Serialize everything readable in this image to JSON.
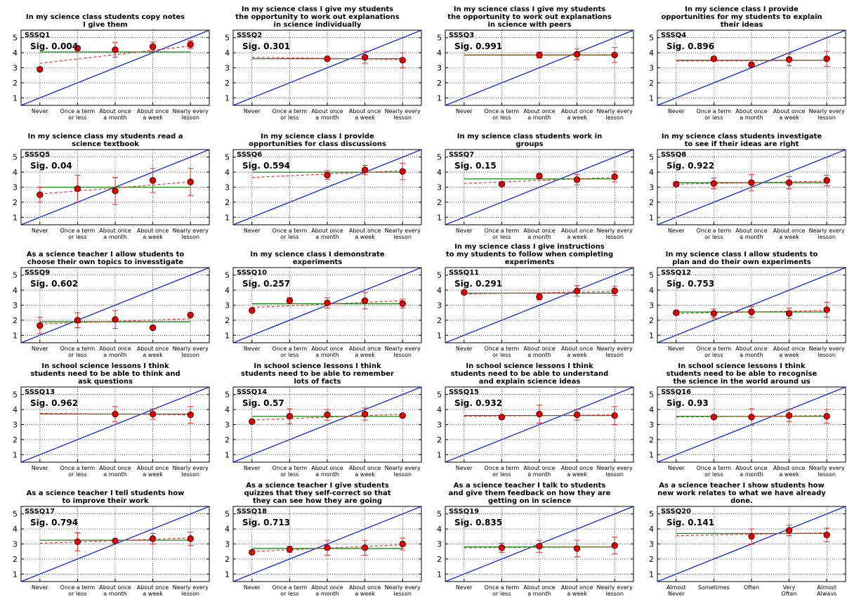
{
  "figure": {
    "colors": {
      "identity_line": "#1f2ff0",
      "mean_line": "#118811",
      "trend_line": "#ff2020",
      "point_fill": "#dd0000",
      "error_bar": "#ff2020"
    }
  },
  "chart_data": [
    {
      "type": "scatter",
      "id": "SSSQ1",
      "title": "In my science class students copy notes\nI give them",
      "sig_label": "Sig. 0.004",
      "x_tick_labels": [
        "Never",
        "Once a term\nor less",
        "About once\na month",
        "About once\na week",
        "Nearly every\nlesson"
      ],
      "ylim": [
        0.5,
        5.5
      ],
      "y_ticks": [
        1,
        2,
        3,
        4,
        5
      ],
      "grid": true,
      "means": [
        2.9,
        4.3,
        4.2,
        4.4,
        4.55
      ],
      "errors": [
        0,
        0.15,
        0.5,
        0.3,
        0.25
      ],
      "mean_line": 4.05,
      "trend": [
        3.3,
        4.45
      ]
    },
    {
      "type": "scatter",
      "id": "SSSQ2",
      "title": "In my science class I give my students\nthe opportunity to work out explanations\nin science individually",
      "sig_label": "Sig. 0.301",
      "x_tick_labels": [
        "Never",
        "Once a term\nor less",
        "About once\na month",
        "About once\na week",
        "Nearly every\nlesson"
      ],
      "ylim": [
        0.5,
        5.5
      ],
      "y_ticks": [
        1,
        2,
        3,
        4,
        5
      ],
      "grid": true,
      "means": [
        null,
        null,
        3.6,
        3.7,
        3.5
      ],
      "errors": [
        0,
        0,
        0.1,
        0.4,
        0.5
      ],
      "mean_line": 3.6,
      "trend": [
        3.7,
        3.55
      ]
    },
    {
      "type": "scatter",
      "id": "SSSQ3",
      "title": "In my science class I give my students\nthe opportunity to work out explanations\nin science with peers",
      "sig_label": "Sig. 0.991",
      "x_tick_labels": [
        "Never",
        "Once a term\nor less",
        "About once\na month",
        "About once\na week",
        "Nearly every\nlesson"
      ],
      "ylim": [
        0.5,
        5.5
      ],
      "y_ticks": [
        1,
        2,
        3,
        4,
        5
      ],
      "grid": true,
      "means": [
        null,
        null,
        3.85,
        3.9,
        3.85
      ],
      "errors": [
        0,
        0,
        0.2,
        0.35,
        0.5
      ],
      "mean_line": 3.85,
      "trend": [
        3.85,
        3.85
      ]
    },
    {
      "type": "scatter",
      "id": "SSSQ4",
      "title": "In my science class I provide\nopportunities for my students to explain\ntheir ideas",
      "sig_label": "Sig. 0.896",
      "x_tick_labels": [
        "Never",
        "Once a term\nor less",
        "About once\na month",
        "About once\na week",
        "Nearly every\nlesson"
      ],
      "ylim": [
        0.5,
        5.5
      ],
      "y_ticks": [
        1,
        2,
        3,
        4,
        5
      ],
      "grid": true,
      "means": [
        null,
        3.6,
        3.2,
        3.55,
        3.6
      ],
      "errors": [
        0,
        0.1,
        0.15,
        0.4,
        0.5
      ],
      "mean_line": 3.5,
      "trend": [
        3.45,
        3.5
      ]
    },
    {
      "type": "scatter",
      "id": "SSSQ5",
      "title": "In my science class my students read a\nscience textbook",
      "sig_label": "Sig. 0.04",
      "x_tick_labels": [
        "Never",
        "Once a term\nor less",
        "About once\na month",
        "About once\na week",
        "Nearly every\nlesson"
      ],
      "ylim": [
        0.5,
        5.5
      ],
      "y_ticks": [
        1,
        2,
        3,
        4,
        5
      ],
      "grid": true,
      "means": [
        2.5,
        2.9,
        2.75,
        3.45,
        3.35
      ],
      "errors": [
        0.5,
        0.9,
        0.9,
        0.8,
        0.9
      ],
      "mean_line": 3.0,
      "trend": [
        2.55,
        3.35
      ]
    },
    {
      "type": "scatter",
      "id": "SSSQ6",
      "title": "In my science class I provide\nopportunities for class discussions",
      "sig_label": "Sig. 0.594",
      "x_tick_labels": [
        "Never",
        "Once a term\nor less",
        "About once\na month",
        "About once\na week",
        "Nearly every\nlesson"
      ],
      "ylim": [
        0.5,
        5.5
      ],
      "y_ticks": [
        1,
        2,
        3,
        4,
        5
      ],
      "grid": true,
      "means": [
        null,
        null,
        3.8,
        4.15,
        4.05
      ],
      "errors": [
        0,
        0,
        0.3,
        0.3,
        0.55
      ],
      "mean_line": 4.0,
      "trend": [
        3.65,
        4.1
      ]
    },
    {
      "type": "scatter",
      "id": "SSSQ7",
      "title": "In my science class students work in\ngroups",
      "sig_label": "Sig. 0.15",
      "x_tick_labels": [
        "Never",
        "Once a term\nor less",
        "About once\na month",
        "About once\na week",
        "Nearly every\nlesson"
      ],
      "ylim": [
        0.5,
        5.5
      ],
      "y_ticks": [
        1,
        2,
        3,
        4,
        5
      ],
      "grid": true,
      "means": [
        null,
        3.2,
        3.75,
        3.5,
        3.7
      ],
      "errors": [
        0,
        0.1,
        0.15,
        0.35,
        0.35
      ],
      "mean_line": 3.55,
      "trend": [
        3.25,
        3.65
      ]
    },
    {
      "type": "scatter",
      "id": "SSSQ8",
      "title": "In my science class students investigate\nto see if their ideas are right",
      "sig_label": "Sig. 0.922",
      "x_tick_labels": [
        "Never",
        "Once a term\nor less",
        "About once\na month",
        "About once\na week",
        "Nearly every\nlesson"
      ],
      "ylim": [
        0.5,
        5.5
      ],
      "y_ticks": [
        1,
        2,
        3,
        4,
        5
      ],
      "grid": true,
      "means": [
        3.2,
        3.25,
        3.3,
        3.3,
        3.45
      ],
      "errors": [
        0.15,
        0.35,
        0.55,
        0.4,
        0.35
      ],
      "mean_line": 3.3,
      "trend": [
        3.2,
        3.4
      ]
    },
    {
      "type": "scatter",
      "id": "SSSQ9",
      "title": "As a science teacher I allow students to\nchoose their own topics to invesstigate",
      "sig_label": "Sig. 0.602",
      "x_tick_labels": [
        "Never",
        "Once a term\nor less",
        "About once\na month",
        "About once\na week",
        "Nearly every\nlesson"
      ],
      "ylim": [
        0.5,
        5.5
      ],
      "y_ticks": [
        1,
        2,
        3,
        4,
        5
      ],
      "grid": true,
      "means": [
        1.65,
        2.0,
        2.05,
        1.5,
        2.35
      ],
      "errors": [
        0.55,
        0.5,
        0.6,
        0,
        0.1
      ],
      "mean_line": 1.9,
      "trend": [
        1.75,
        2.1
      ]
    },
    {
      "type": "scatter",
      "id": "SSSQ10",
      "title": "In my science class I demonstrate\nexperiments",
      "sig_label": "Sig. 0.257",
      "x_tick_labels": [
        "Never",
        "Once a term\nor less",
        "About once\na month",
        "About once\na week",
        "Nearly every\nlesson"
      ],
      "ylim": [
        0.5,
        5.5
      ],
      "y_ticks": [
        1,
        2,
        3,
        4,
        5
      ],
      "grid": true,
      "means": [
        2.65,
        3.3,
        3.15,
        3.3,
        3.1
      ],
      "errors": [
        0.1,
        0.2,
        0.35,
        0.55,
        0.3
      ],
      "mean_line": 3.1,
      "trend": [
        2.85,
        3.3
      ]
    },
    {
      "type": "scatter",
      "id": "SSSQ11",
      "title": "In my science class I give instructions\nto my students to follow when completing\nexperiments",
      "sig_label": "Sig. 0.291",
      "x_tick_labels": [
        "Never",
        "Once a term\nor less",
        "About once\na month",
        "About once\na week",
        "Nearly every\nlesson"
      ],
      "ylim": [
        0.5,
        5.5
      ],
      "y_ticks": [
        1,
        2,
        3,
        4,
        5
      ],
      "grid": true,
      "means": [
        3.85,
        null,
        3.55,
        3.95,
        3.95
      ],
      "errors": [
        0.1,
        0,
        0.2,
        0.35,
        0.3
      ],
      "mean_line": 3.8,
      "trend": [
        3.75,
        3.9
      ]
    },
    {
      "type": "scatter",
      "id": "SSSQ12",
      "title": "In my science class I allow students to\nplan and do their own experiments",
      "sig_label": "Sig. 0.753",
      "x_tick_labels": [
        "Never",
        "Once a term\nor less",
        "About once\na month",
        "About once\na week",
        "Nearly every\nlesson"
      ],
      "ylim": [
        0.5,
        5.5
      ],
      "y_ticks": [
        1,
        2,
        3,
        4,
        5
      ],
      "grid": true,
      "means": [
        2.5,
        2.45,
        2.55,
        2.45,
        2.7
      ],
      "errors": [
        0.15,
        0.3,
        0.35,
        0.35,
        0.5
      ],
      "mean_line": 2.55,
      "trend": [
        2.45,
        2.65
      ]
    },
    {
      "type": "scatter",
      "id": "SSSQ13",
      "title": "In school science lessons I think\nstudents need to be able to think and\nask questions",
      "sig_label": "Sig. 0.962",
      "x_tick_labels": [
        "Never",
        "Once a term\nor less",
        "About once\na month",
        "About once\na week",
        "Nearly every\nlesson"
      ],
      "ylim": [
        0.5,
        5.5
      ],
      "y_ticks": [
        1,
        2,
        3,
        4,
        5
      ],
      "grid": true,
      "means": [
        null,
        null,
        3.7,
        3.7,
        3.65
      ],
      "errors": [
        0,
        0,
        0.5,
        0.35,
        0.55
      ],
      "mean_line": 3.7,
      "trend": [
        3.75,
        3.65
      ]
    },
    {
      "type": "scatter",
      "id": "SSSQ14",
      "title": "In school science lessons I think\nstudents need to be able to remember\nlots of facts",
      "sig_label": "Sig. 0.57",
      "x_tick_labels": [
        "Never",
        "Once a term\nor less",
        "About once\na month",
        "About once\na week",
        "Nearly every\nlesson"
      ],
      "ylim": [
        0.5,
        5.5
      ],
      "y_ticks": [
        1,
        2,
        3,
        4,
        5
      ],
      "grid": true,
      "means": [
        3.2,
        3.55,
        3.65,
        3.7,
        3.6
      ],
      "errors": [
        0.1,
        0.5,
        0.35,
        0.4,
        0.1
      ],
      "mean_line": 3.55,
      "trend": [
        3.3,
        3.7
      ]
    },
    {
      "type": "scatter",
      "id": "SSSQ15",
      "title": "In school science lessons I think\nstudents need to be able to understand\nand explain science ideas",
      "sig_label": "Sig. 0.932",
      "x_tick_labels": [
        "Never",
        "Once a term\nor less",
        "About once\na month",
        "About once\na week",
        "Nearly every\nlesson"
      ],
      "ylim": [
        0.5,
        5.5
      ],
      "y_ticks": [
        1,
        2,
        3,
        4,
        5
      ],
      "grid": true,
      "means": [
        null,
        3.5,
        3.7,
        3.65,
        3.6
      ],
      "errors": [
        0,
        0.1,
        0.6,
        0.35,
        0.6
      ],
      "mean_line": 3.6,
      "trend": [
        3.55,
        3.65
      ]
    },
    {
      "type": "scatter",
      "id": "SSSQ16",
      "title": "In school science lessons I think\nstudents need to be able to recognise\nthe science in the world around us",
      "sig_label": "Sig. 0.93",
      "x_tick_labels": [
        "Never",
        "Once a term\nor less",
        "About once\na month",
        "About once\na week",
        "Nearly every\nlesson"
      ],
      "ylim": [
        0.5,
        5.5
      ],
      "y_ticks": [
        1,
        2,
        3,
        4,
        5
      ],
      "grid": true,
      "means": [
        null,
        3.5,
        3.5,
        3.6,
        3.55
      ],
      "errors": [
        0,
        0.1,
        0.55,
        0.4,
        0.45
      ],
      "mean_line": 3.55,
      "trend": [
        3.5,
        3.6
      ]
    },
    {
      "type": "scatter",
      "id": "SSSQ17",
      "title": "As a science teacher I tell students how\nto improve their work",
      "sig_label": "Sig. 0.794",
      "x_tick_labels": [
        "Never",
        "Once a term\nor less",
        "About once\na month",
        "About once\na week",
        "Nearly every\nlesson"
      ],
      "ylim": [
        0.5,
        5.5
      ],
      "y_ticks": [
        1,
        2,
        3,
        4,
        5
      ],
      "grid": true,
      "means": [
        null,
        3.15,
        3.2,
        3.35,
        3.35
      ],
      "errors": [
        0,
        0.6,
        0.1,
        0.35,
        0.45
      ],
      "mean_line": 3.25,
      "trend": [
        3.05,
        3.4
      ]
    },
    {
      "type": "scatter",
      "id": "SSSQ18",
      "title": "As a science teacher I give students\nquizzes that they self-correct so that\nthey can see how they are going",
      "sig_label": "Sig. 0.713",
      "x_tick_labels": [
        "Never",
        "Once a term\nor less",
        "About once\na month",
        "About once\na week",
        "Nearly every\nlesson"
      ],
      "ylim": [
        0.5,
        5.5
      ],
      "y_ticks": [
        1,
        2,
        3,
        4,
        5
      ],
      "grid": true,
      "means": [
        2.45,
        2.65,
        2.75,
        2.75,
        3.0
      ],
      "errors": [
        0.1,
        0.2,
        0.5,
        0.5,
        0.4
      ],
      "mean_line": 2.7,
      "trend": [
        2.5,
        2.95
      ]
    },
    {
      "type": "scatter",
      "id": "SSSQ19",
      "title": "As a science teacher I talk to students\nand give them feedback on how they are\ngetting on in science",
      "sig_label": "Sig. 0.835",
      "x_tick_labels": [
        "Never",
        "Once a term\nor less",
        "About once\na month",
        "About once\na week",
        "Nearly every\nlesson"
      ],
      "ylim": [
        0.5,
        5.5
      ],
      "y_ticks": [
        1,
        2,
        3,
        4,
        5
      ],
      "grid": true,
      "means": [
        null,
        2.75,
        2.85,
        2.7,
        2.9
      ],
      "errors": [
        0,
        0.3,
        0.4,
        0.55,
        0.55
      ],
      "mean_line": 2.8,
      "trend": [
        2.75,
        2.8
      ]
    },
    {
      "type": "scatter",
      "id": "SSSQ20",
      "title": "As a science teacher I show students how\nnew work relates to what we have already\ndone.",
      "sig_label": "Sig. 0.141",
      "x_tick_labels": [
        "Almost\nNever",
        "Sometimes",
        "Often",
        "Very\nOften",
        "Almost\nAlways"
      ],
      "ylim": [
        0.5,
        5.5
      ],
      "y_ticks": [
        1,
        2,
        3,
        4,
        5
      ],
      "grid": true,
      "means": [
        null,
        null,
        3.5,
        3.9,
        3.6
      ],
      "errors": [
        0,
        0,
        0.5,
        0.35,
        0.45
      ],
      "mean_line": 3.7,
      "trend": [
        3.55,
        3.75
      ]
    }
  ]
}
